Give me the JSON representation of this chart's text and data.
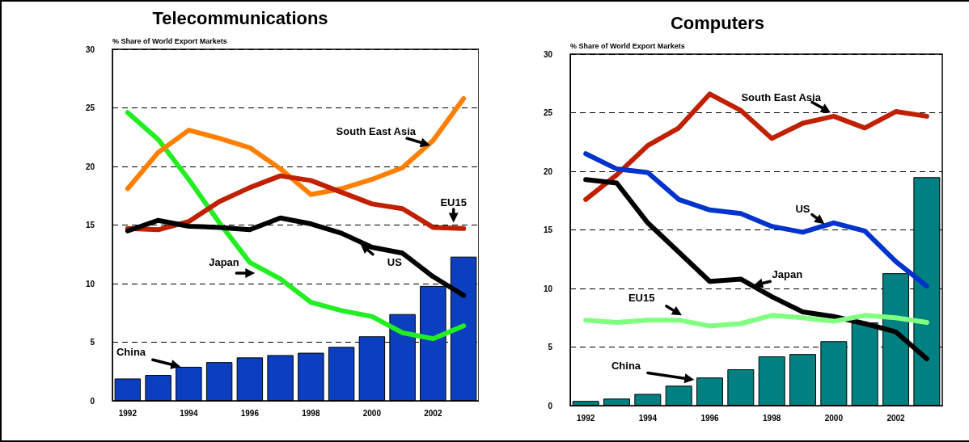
{
  "chart_data": [
    {
      "type": "line",
      "title": "Telecommunications",
      "ylabel": "% Share of World Export Markets",
      "categories": [
        "1992",
        null,
        "1994",
        null,
        "1996",
        null,
        "1998",
        null,
        "2000",
        null,
        "2002",
        null
      ],
      "series": [
        {
          "name": "China",
          "type": "bar",
          "color": "#0b3fbf",
          "values": [
            1.9,
            2.2,
            2.9,
            3.3,
            3.7,
            3.9,
            4.1,
            4.6,
            5.5,
            7.4,
            9.8,
            12.3
          ]
        },
        {
          "name": "Japan",
          "color": "#22ee22",
          "values": [
            24.6,
            22.3,
            18.9,
            15.2,
            11.8,
            10.4,
            8.4,
            7.7,
            7.2,
            5.8,
            5.3,
            6.4
          ]
        },
        {
          "name": "South East Asia",
          "color": "#ff8000",
          "values": [
            18.1,
            21.2,
            23.1,
            22.4,
            21.6,
            19.8,
            17.6,
            18.1,
            18.9,
            19.9,
            22.2,
            25.8
          ]
        },
        {
          "name": "EU15",
          "color": "#c02000",
          "values": [
            14.7,
            14.6,
            15.3,
            17.0,
            18.2,
            19.2,
            18.8,
            17.8,
            16.8,
            16.4,
            14.8,
            14.7
          ]
        },
        {
          "name": "US",
          "color": "#000000",
          "values": [
            14.5,
            15.4,
            14.9,
            14.8,
            14.6,
            15.6,
            15.1,
            14.3,
            13.1,
            12.6,
            10.6,
            9.0
          ]
        }
      ],
      "ylim": [
        0,
        30
      ],
      "yticks": [
        0,
        5,
        10,
        15,
        20,
        25,
        30
      ],
      "grid": "y",
      "legend": false,
      "marker": "none",
      "line_style": "solid"
    },
    {
      "type": "line",
      "title": "Computers",
      "ylabel": "% Share of World Export Markets",
      "categories": [
        "1992",
        null,
        "1994",
        null,
        "1996",
        null,
        "1998",
        null,
        "2000",
        null,
        "2002",
        null
      ],
      "series": [
        {
          "name": "China",
          "type": "bar",
          "color": "#008080",
          "values": [
            0.4,
            0.6,
            1.0,
            1.7,
            2.4,
            3.1,
            4.2,
            4.4,
            5.5,
            7.1,
            11.3,
            19.5
          ]
        },
        {
          "name": "South East Asia",
          "color": "#c02000",
          "values": [
            17.6,
            19.7,
            22.2,
            23.7,
            26.6,
            25.2,
            22.8,
            24.1,
            24.7,
            23.7,
            25.1,
            24.7
          ]
        },
        {
          "name": "US",
          "color": "#0033cc",
          "values": [
            21.5,
            20.2,
            19.9,
            17.6,
            16.7,
            16.4,
            15.3,
            14.8,
            15.6,
            14.9,
            12.3,
            10.2
          ]
        },
        {
          "name": "Japan",
          "color": "#000000",
          "values": [
            19.3,
            19.0,
            15.6,
            13.1,
            10.6,
            10.8,
            9.3,
            8.0,
            7.6,
            7.0,
            6.3,
            4.0
          ]
        },
        {
          "name": "EU15",
          "color": "#80ff80",
          "values": [
            7.3,
            7.1,
            7.3,
            7.3,
            6.8,
            7.0,
            7.7,
            7.5,
            7.2,
            7.7,
            7.5,
            7.1
          ]
        }
      ],
      "ylim": [
        0,
        30
      ],
      "yticks": [
        0,
        5,
        10,
        15,
        20,
        25,
        30
      ],
      "grid": "y",
      "legend": false,
      "marker": "none",
      "line_style": "solid"
    }
  ]
}
